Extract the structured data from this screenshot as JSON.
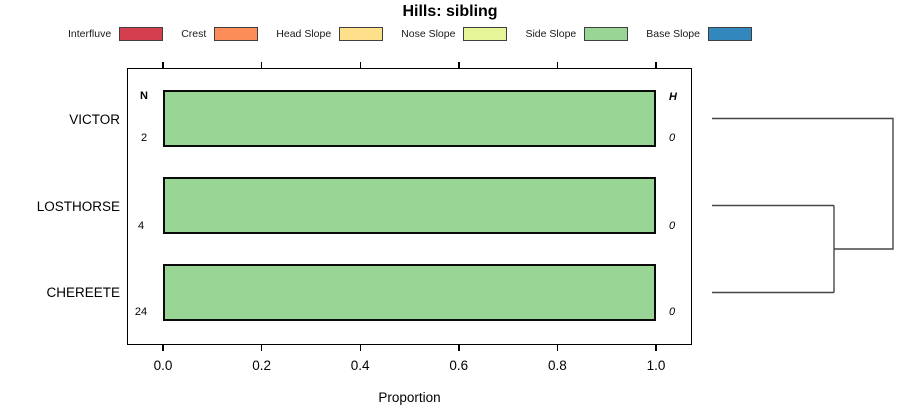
{
  "title": "Hills: sibling",
  "legend": {
    "items": [
      {
        "label": "Interfluve",
        "color": "#D53E4F"
      },
      {
        "label": "Crest",
        "color": "#FC8D59"
      },
      {
        "label": "Head Slope",
        "color": "#FEE08B"
      },
      {
        "label": "Nose Slope",
        "color": "#E6F598"
      },
      {
        "label": "Side Slope",
        "color": "#99D594"
      },
      {
        "label": "Base Slope",
        "color": "#3288BD"
      }
    ]
  },
  "columns": {
    "n_header": "N",
    "h_header": "H"
  },
  "rows": [
    {
      "category": "VICTOR",
      "n": "2",
      "h": "0"
    },
    {
      "category": "LOSTHORSE",
      "n": "4",
      "h": "0"
    },
    {
      "category": "CHEREETE",
      "n": "24",
      "h": "0"
    }
  ],
  "axis": {
    "label": "Proportion",
    "ticks": [
      "0.0",
      "0.2",
      "0.4",
      "0.6",
      "0.8",
      "1.0"
    ]
  },
  "colors": {
    "bar_outline": "#0a0a0a",
    "swatch_border": "#3f3f3f",
    "plot_border": "#000000",
    "dendrogram_line": "#474747",
    "background": "#ffffff"
  },
  "chart_data": {
    "type": "bar",
    "orientation": "horizontal",
    "stacked": true,
    "title": "Hills: sibling",
    "xlabel": "Proportion",
    "xlim": [
      0,
      1.0
    ],
    "xticks": [
      0,
      0.2,
      0.4,
      0.6,
      0.8,
      1.0
    ],
    "grid": false,
    "legend_position": "top",
    "categories": [
      "VICTOR",
      "LOSTHORSE",
      "CHEREETE"
    ],
    "series": [
      {
        "name": "Interfluve",
        "color": "#D53E4F",
        "values": [
          0,
          0,
          0
        ]
      },
      {
        "name": "Crest",
        "color": "#FC8D59",
        "values": [
          0,
          0,
          0
        ]
      },
      {
        "name": "Head Slope",
        "color": "#FEE08B",
        "values": [
          0,
          0,
          0
        ]
      },
      {
        "name": "Nose Slope",
        "color": "#E6F598",
        "values": [
          0,
          0,
          0
        ]
      },
      {
        "name": "Side Slope",
        "color": "#99D594",
        "values": [
          1.0,
          1.0,
          1.0
        ]
      },
      {
        "name": "Base Slope",
        "color": "#3288BD",
        "values": [
          0,
          0,
          0
        ]
      }
    ],
    "annotations": {
      "n_label": "N",
      "n_values": [
        2,
        4,
        24
      ],
      "h_label": "H",
      "h_values": [
        0,
        0,
        0
      ]
    },
    "dendrogram": {
      "leaves": [
        "VICTOR",
        "LOSTHORSE",
        "CHEREETE"
      ],
      "merges": [
        {
          "members": [
            "LOSTHORSE",
            "CHEREETE"
          ],
          "relative_height": 0.67
        },
        {
          "members": [
            "VICTOR",
            "LOSTHORSE+CHEREETE"
          ],
          "relative_height": 1.0
        }
      ]
    }
  }
}
